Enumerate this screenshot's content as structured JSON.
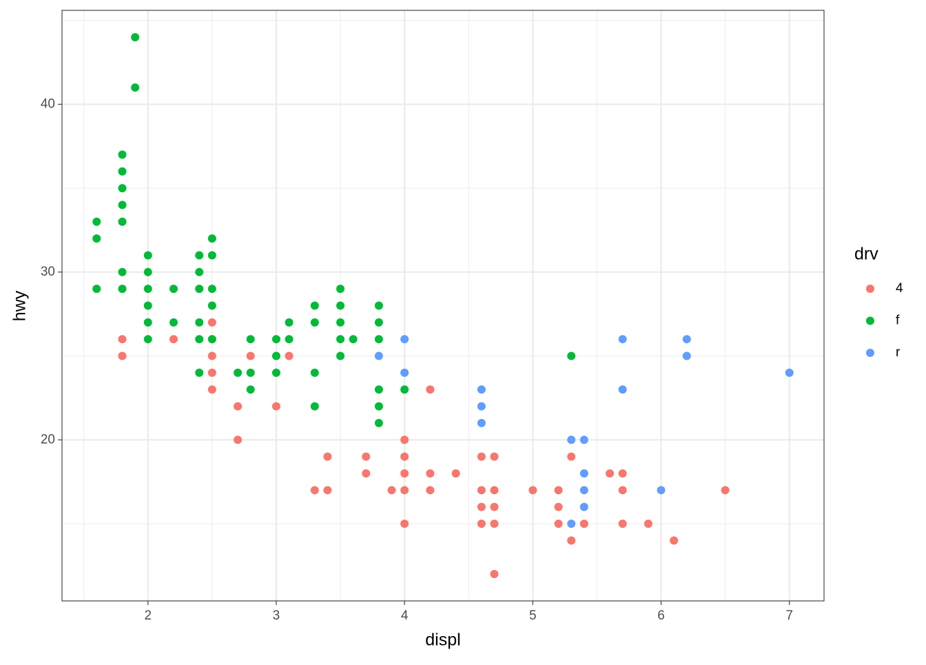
{
  "chart_data": {
    "type": "scatter",
    "x_label": "displ",
    "y_label": "hwy",
    "legend_title": "drv",
    "xlim": [
      1.33,
      7.27
    ],
    "ylim": [
      10.4,
      45.6
    ],
    "xticks": [
      2,
      3,
      4,
      5,
      6,
      7
    ],
    "yticks": [
      20,
      30,
      40
    ],
    "x_minor_grid": [
      1.5,
      2.5,
      3.5,
      4.5,
      5.5,
      6.5
    ],
    "y_minor_grid": [
      15,
      25,
      35,
      45
    ],
    "grid": true,
    "legend": "right",
    "series": [
      {
        "name": "4",
        "color": "#f8766d",
        "x": [
          1.8,
          1.8,
          2.2,
          2.5,
          2.5,
          2.5,
          2.5,
          2.5,
          2.7,
          2.7,
          2.8,
          3.0,
          3.1,
          3.3,
          3.4,
          3.4,
          3.7,
          3.7,
          3.9,
          4.0,
          4.0,
          4.0,
          4.0,
          4.0,
          4.2,
          4.2,
          4.2,
          4.4,
          4.6,
          4.6,
          4.6,
          4.6,
          4.7,
          4.7,
          4.7,
          4.7,
          4.7,
          5.0,
          5.2,
          5.2,
          5.2,
          5.3,
          5.3,
          5.4,
          5.6,
          5.7,
          5.7,
          5.7,
          5.9,
          6.1,
          6.5
        ],
        "values": [
          26,
          25,
          26,
          27,
          26,
          25,
          24,
          23,
          22,
          20,
          25,
          22,
          25,
          17,
          19,
          17,
          19,
          18,
          17,
          20,
          19,
          18,
          17,
          15,
          23,
          18,
          17,
          18,
          19,
          17,
          16,
          15,
          19,
          17,
          16,
          15,
          12,
          17,
          17,
          16,
          15,
          19,
          14,
          15,
          18,
          18,
          17,
          15,
          15,
          14,
          17
        ]
      },
      {
        "name": "f",
        "color": "#00ba38",
        "x": [
          1.6,
          1.6,
          1.6,
          1.8,
          1.8,
          1.8,
          1.8,
          1.8,
          1.8,
          1.8,
          1.9,
          1.9,
          2.0,
          2.0,
          2.0,
          2.0,
          2.0,
          2.0,
          2.2,
          2.2,
          2.4,
          2.4,
          2.4,
          2.4,
          2.4,
          2.4,
          2.5,
          2.5,
          2.5,
          2.5,
          2.5,
          2.7,
          2.8,
          2.8,
          2.8,
          3.0,
          3.0,
          3.0,
          3.1,
          3.1,
          3.3,
          3.3,
          3.3,
          3.3,
          3.5,
          3.5,
          3.5,
          3.5,
          3.5,
          3.6,
          3.8,
          3.8,
          3.8,
          3.8,
          3.8,
          3.8,
          4.0,
          5.3
        ],
        "values": [
          33,
          32,
          29,
          37,
          36,
          35,
          34,
          33,
          30,
          29,
          44,
          41,
          31,
          30,
          29,
          28,
          27,
          26,
          29,
          27,
          31,
          30,
          29,
          27,
          26,
          24,
          32,
          31,
          29,
          28,
          26,
          24,
          26,
          24,
          23,
          26,
          25,
          24,
          27,
          26,
          28,
          27,
          24,
          22,
          29,
          28,
          27,
          26,
          25,
          26,
          28,
          27,
          26,
          23,
          22,
          21,
          23,
          25
        ]
      },
      {
        "name": "r",
        "color": "#619cff",
        "x": [
          3.8,
          4.0,
          4.0,
          4.6,
          4.6,
          4.6,
          5.3,
          5.3,
          5.4,
          5.4,
          5.4,
          5.4,
          5.7,
          5.7,
          6.0,
          6.2,
          6.2,
          7.0
        ],
        "values": [
          25,
          26,
          24,
          23,
          22,
          21,
          20,
          15,
          20,
          18,
          17,
          16,
          26,
          23,
          17,
          26,
          25,
          24
        ]
      }
    ]
  }
}
